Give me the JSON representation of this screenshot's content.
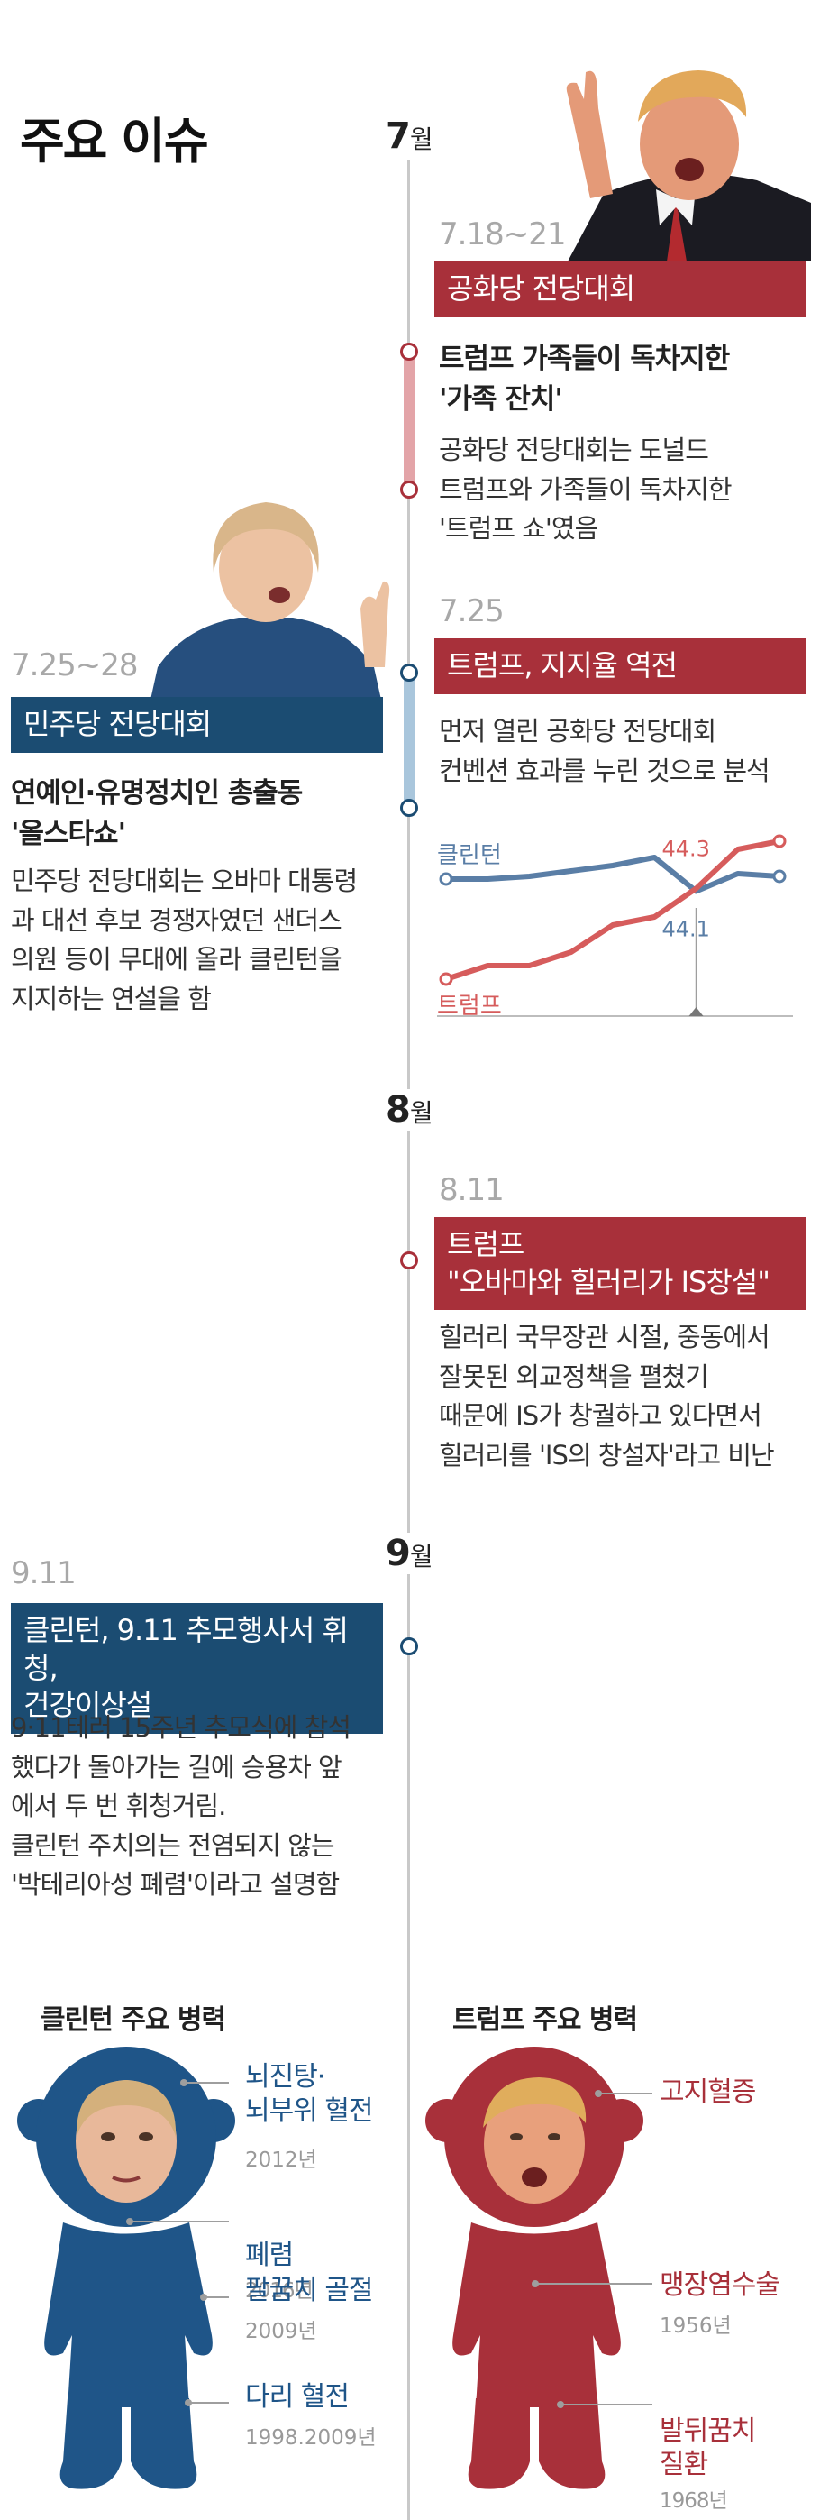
{
  "page_title": "주요 이슈",
  "colors": {
    "red": "#a8303a",
    "blue": "#1b4c72",
    "line_red": "#d65c5c",
    "line_blue": "#5a7ea6"
  },
  "months": {
    "jul": "7",
    "aug": "8",
    "sep": "9",
    "suffix": "월"
  },
  "events": {
    "rnc": {
      "date": "7.18~21",
      "heading": "공화당 전당대회",
      "subheading": "트럼프 가족들이 독차지한\n'가족 잔치'",
      "body": "공화당 전당대회는 도널드\n트럼프와 가족들이 독차지한\n'트럼프 쇼'였음"
    },
    "poll": {
      "date": "7.25",
      "heading": "트럼프, 지지율 역전",
      "body": "먼저 열린 공화당 전당대회\n컨벤션 효과를 누린 것으로 분석"
    },
    "dnc": {
      "date": "7.25~28",
      "heading": "민주당 전당대회",
      "subheading": "연예인·유명정치인 총출동\n'올스타쇼'",
      "body": "민주당 전당대회는 오바마 대통령\n과 대선 후보 경쟁자였던 샌더스\n의원 등이 무대에 올라 클린턴을\n지지하는 연설을 함"
    },
    "is": {
      "date": "8.11",
      "heading_line1": "트럼프",
      "heading_line2": "\"오바마와 힐러리가 IS창설\"",
      "body": "힐러리 국무장관 시절, 중동에서\n잘못된 외교정책을 펼쳤기\n때문에 IS가 창궐하고 있다면서\n힐러리를 'IS의 창설자'라고 비난"
    },
    "health": {
      "date": "9.11",
      "heading_line1": "클린턴, 9.11 추모행사서 휘청,",
      "heading_line2": "건강이상설",
      "body": "9·11테러 15주년 추모식에 참석\n했다가 돌아가는 길에 승용차 앞\n에서 두 번 휘청거림.\n클린턴 주치의는 전염되지 않는\n'박테리아성 폐렴'이라고 설명함"
    }
  },
  "chart_data": {
    "type": "line",
    "x": [
      1,
      2,
      3,
      4,
      5,
      6,
      7,
      8,
      9
    ],
    "series": [
      {
        "name": "클린턴",
        "values": [
          45.0,
          45.0,
          45.2,
          45.6,
          46.0,
          46.6,
          44.1,
          45.4,
          45.2
        ]
      },
      {
        "name": "트럼프",
        "values": [
          37.6,
          38.6,
          38.6,
          39.6,
          41.6,
          42.2,
          44.3,
          47.2,
          47.8
        ]
      }
    ],
    "annotations": [
      {
        "series": "트럼프",
        "label": "44.3"
      },
      {
        "series": "클린턴",
        "label": "44.1"
      }
    ],
    "ylim": [
      36,
      49
    ],
    "grid": false
  },
  "health": {
    "clinton_title": "클린턴 주요 병력",
    "trump_title": "트럼프 주요 병력",
    "clinton": [
      {
        "label": "뇌진탕·\n뇌부위 혈전",
        "year": "2012년"
      },
      {
        "label": "폐렴",
        "year": "2016년"
      },
      {
        "label": "팔꿈치 골절",
        "year": "2009년"
      },
      {
        "label": "다리 혈전",
        "year": "1998.2009년"
      }
    ],
    "trump": [
      {
        "label": "고지혈증",
        "year": ""
      },
      {
        "label": "맹장염수술",
        "year": "1956년"
      },
      {
        "label": "발뒤꿈치\n질환",
        "year": "1968년"
      }
    ]
  }
}
